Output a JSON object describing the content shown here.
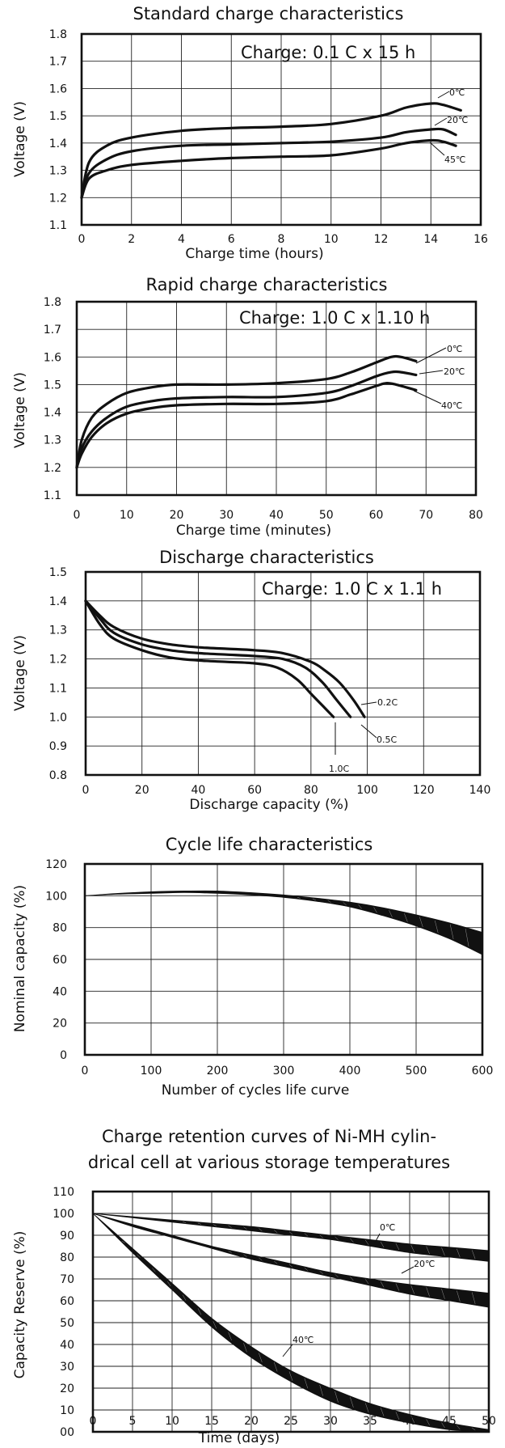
{
  "chart_data": [
    {
      "type": "line",
      "title": "Standard charge characteristics",
      "xlabel": "Charge time (hours)",
      "ylabel": "Voltage (V)",
      "annotation": "Charge: 0.1 C x 15 h",
      "xlim": [
        0,
        16
      ],
      "ylim": [
        1.1,
        1.8
      ],
      "x_ticks": [
        "0",
        "2",
        "4",
        "6",
        "8",
        "10",
        "12",
        "14",
        "16"
      ],
      "y_ticks": [
        "1.1",
        "1.2",
        "1.3",
        "1.4",
        "1.5",
        "1.6",
        "1.7",
        "1.8"
      ],
      "grid": true,
      "series": [
        {
          "name": "0℃",
          "points": [
            [
              0,
              1.2
            ],
            [
              0.3,
              1.33
            ],
            [
              1,
              1.39
            ],
            [
              2,
              1.42
            ],
            [
              4,
              1.445
            ],
            [
              6,
              1.455
            ],
            [
              8,
              1.46
            ],
            [
              10,
              1.47
            ],
            [
              12,
              1.5
            ],
            [
              13,
              1.53
            ],
            [
              14,
              1.545
            ],
            [
              14.5,
              1.54
            ],
            [
              15.2,
              1.52
            ]
          ]
        },
        {
          "name": "20℃",
          "points": [
            [
              0,
              1.2
            ],
            [
              0.3,
              1.29
            ],
            [
              1,
              1.34
            ],
            [
              2,
              1.37
            ],
            [
              4,
              1.39
            ],
            [
              6,
              1.395
            ],
            [
              8,
              1.4
            ],
            [
              10,
              1.405
            ],
            [
              12,
              1.42
            ],
            [
              13,
              1.44
            ],
            [
              14,
              1.45
            ],
            [
              14.5,
              1.45
            ],
            [
              15,
              1.43
            ]
          ]
        },
        {
          "name": "45℃",
          "points": [
            [
              0,
              1.2
            ],
            [
              0.3,
              1.27
            ],
            [
              1,
              1.3
            ],
            [
              2,
              1.32
            ],
            [
              4,
              1.335
            ],
            [
              6,
              1.345
            ],
            [
              8,
              1.35
            ],
            [
              10,
              1.355
            ],
            [
              12,
              1.38
            ],
            [
              13,
              1.4
            ],
            [
              14,
              1.41
            ],
            [
              14.5,
              1.405
            ],
            [
              15,
              1.39
            ]
          ]
        }
      ]
    },
    {
      "type": "line",
      "title": "Rapid charge characteristics",
      "xlabel": "Charge time (minutes)",
      "ylabel": "Voltage (V)",
      "annotation": "Charge: 1.0 C x 1.10 h",
      "xlim": [
        0,
        80
      ],
      "ylim": [
        1.1,
        1.8
      ],
      "x_ticks": [
        "0",
        "10",
        "20",
        "30",
        "40",
        "50",
        "60",
        "70",
        "80"
      ],
      "y_ticks": [
        "1.1",
        "1.2",
        "1.3",
        "1.4",
        "1.5",
        "1.6",
        "1.7",
        "1.8"
      ],
      "grid": true,
      "series": [
        {
          "name": "0℃",
          "points": [
            [
              0,
              1.2
            ],
            [
              1,
              1.3
            ],
            [
              3,
              1.38
            ],
            [
              6,
              1.43
            ],
            [
              10,
              1.47
            ],
            [
              15,
              1.49
            ],
            [
              20,
              1.5
            ],
            [
              30,
              1.5
            ],
            [
              40,
              1.505
            ],
            [
              50,
              1.52
            ],
            [
              55,
              1.545
            ],
            [
              60,
              1.58
            ],
            [
              63,
              1.6
            ],
            [
              65,
              1.6
            ],
            [
              68,
              1.585
            ]
          ]
        },
        {
          "name": "20℃",
          "points": [
            [
              0,
              1.2
            ],
            [
              1,
              1.27
            ],
            [
              3,
              1.33
            ],
            [
              6,
              1.38
            ],
            [
              10,
              1.42
            ],
            [
              15,
              1.44
            ],
            [
              20,
              1.45
            ],
            [
              30,
              1.455
            ],
            [
              40,
              1.455
            ],
            [
              50,
              1.47
            ],
            [
              55,
              1.495
            ],
            [
              60,
              1.53
            ],
            [
              63,
              1.545
            ],
            [
              65,
              1.545
            ],
            [
              68,
              1.535
            ]
          ]
        },
        {
          "name": "40℃",
          "points": [
            [
              0,
              1.2
            ],
            [
              1,
              1.25
            ],
            [
              3,
              1.31
            ],
            [
              6,
              1.36
            ],
            [
              10,
              1.395
            ],
            [
              15,
              1.415
            ],
            [
              20,
              1.425
            ],
            [
              30,
              1.43
            ],
            [
              40,
              1.43
            ],
            [
              50,
              1.44
            ],
            [
              55,
              1.465
            ],
            [
              60,
              1.495
            ],
            [
              62,
              1.505
            ],
            [
              64,
              1.5
            ],
            [
              68,
              1.48
            ]
          ]
        }
      ]
    },
    {
      "type": "line",
      "title": "Discharge characteristics",
      "xlabel": "Discharge capacity (%)",
      "ylabel": "Voltage (V)",
      "annotation": "Charge: 1.0 C x 1.1 h",
      "xlim": [
        0,
        140
      ],
      "ylim": [
        0.8,
        1.5
      ],
      "x_ticks": [
        "0",
        "20",
        "40",
        "60",
        "80",
        "100",
        "120",
        "140"
      ],
      "y_ticks": [
        "0.8",
        "0.9",
        "1.0",
        "1.1",
        "1.2",
        "1.3",
        "1.4",
        "1.5"
      ],
      "grid": true,
      "series": [
        {
          "name": "0.2C",
          "points": [
            [
              0,
              1.4
            ],
            [
              5,
              1.35
            ],
            [
              10,
              1.31
            ],
            [
              20,
              1.27
            ],
            [
              30,
              1.25
            ],
            [
              40,
              1.24
            ],
            [
              50,
              1.235
            ],
            [
              60,
              1.23
            ],
            [
              70,
              1.22
            ],
            [
              80,
              1.19
            ],
            [
              85,
              1.16
            ],
            [
              90,
              1.12
            ],
            [
              95,
              1.06
            ],
            [
              99,
              1.0
            ]
          ]
        },
        {
          "name": "0.5C",
          "points": [
            [
              0,
              1.4
            ],
            [
              5,
              1.34
            ],
            [
              10,
              1.29
            ],
            [
              20,
              1.25
            ],
            [
              30,
              1.23
            ],
            [
              40,
              1.22
            ],
            [
              50,
              1.215
            ],
            [
              60,
              1.21
            ],
            [
              70,
              1.2
            ],
            [
              78,
              1.17
            ],
            [
              84,
              1.12
            ],
            [
              89,
              1.06
            ],
            [
              94,
              1.0
            ]
          ]
        },
        {
          "name": "1.0C",
          "points": [
            [
              0,
              1.4
            ],
            [
              5,
              1.32
            ],
            [
              10,
              1.27
            ],
            [
              20,
              1.23
            ],
            [
              30,
              1.205
            ],
            [
              40,
              1.195
            ],
            [
              50,
              1.19
            ],
            [
              60,
              1.185
            ],
            [
              68,
              1.17
            ],
            [
              75,
              1.13
            ],
            [
              80,
              1.08
            ],
            [
              84,
              1.04
            ],
            [
              88,
              1.0
            ]
          ]
        }
      ]
    },
    {
      "type": "area",
      "title": "Cycle life characteristics",
      "xlabel": "Number of cycles life curve",
      "ylabel": "Nominal capacity (%)",
      "xlim": [
        0,
        600
      ],
      "ylim": [
        0,
        120
      ],
      "x_ticks": [
        "0",
        "100",
        "200",
        "300",
        "400",
        "500",
        "600"
      ],
      "y_ticks": [
        "0",
        "20",
        "40",
        "60",
        "80",
        "100",
        "120"
      ],
      "grid": true,
      "band": {
        "upper": [
          [
            0,
            100
          ],
          [
            50,
            101.5
          ],
          [
            100,
            102.5
          ],
          [
            150,
            103
          ],
          [
            200,
            103
          ],
          [
            250,
            102
          ],
          [
            300,
            100.5
          ],
          [
            350,
            98.5
          ],
          [
            400,
            96
          ],
          [
            450,
            92.5
          ],
          [
            500,
            88
          ],
          [
            550,
            83
          ],
          [
            600,
            77
          ]
        ],
        "lower": [
          [
            0,
            100
          ],
          [
            50,
            101
          ],
          [
            100,
            101.5
          ],
          [
            150,
            102
          ],
          [
            200,
            101.5
          ],
          [
            250,
            100.5
          ],
          [
            300,
            99
          ],
          [
            350,
            96.5
          ],
          [
            400,
            93
          ],
          [
            450,
            87.5
          ],
          [
            500,
            81
          ],
          [
            550,
            73
          ],
          [
            600,
            63
          ]
        ]
      }
    },
    {
      "type": "area",
      "title": "Charge retention curves of Ni-MH cylin-drical cell at various storage temperatures",
      "title_lines": [
        "Charge retention curves of Ni-MH cylin-",
        "drical cell at various storage temperatures"
      ],
      "xlabel": "Time (days)",
      "ylabel": "Capacity Reserve (%)",
      "xlim": [
        0,
        50
      ],
      "ylim": [
        0,
        110
      ],
      "x_ticks": [
        "0",
        "5",
        "10",
        "15",
        "20",
        "25",
        "30",
        "35",
        "40",
        "45",
        "50"
      ],
      "y_ticks": [
        "00",
        "10",
        "20",
        "30",
        "40",
        "50",
        "60",
        "70",
        "80",
        "90",
        "100",
        "110"
      ],
      "grid": true,
      "bands": [
        {
          "name": "0℃",
          "upper": [
            [
              0,
              100
            ],
            [
              5,
              98.5
            ],
            [
              10,
              97
            ],
            [
              15,
              95.5
            ],
            [
              20,
              94
            ],
            [
              25,
              92
            ],
            [
              30,
              90
            ],
            [
              35,
              88
            ],
            [
              40,
              86
            ],
            [
              45,
              84.5
            ],
            [
              50,
              83
            ]
          ],
          "lower": [
            [
              0,
              100
            ],
            [
              5,
              98
            ],
            [
              10,
              96
            ],
            [
              15,
              94
            ],
            [
              20,
              92
            ],
            [
              25,
              90
            ],
            [
              30,
              88
            ],
            [
              35,
              85
            ],
            [
              40,
              82
            ],
            [
              45,
              80
            ],
            [
              50,
              78
            ]
          ]
        },
        {
          "name": "20℃",
          "upper": [
            [
              0,
              100
            ],
            [
              5,
              95
            ],
            [
              10,
              90
            ],
            [
              15,
              85
            ],
            [
              20,
              81
            ],
            [
              25,
              77
            ],
            [
              30,
              73
            ],
            [
              35,
              70
            ],
            [
              40,
              67.5
            ],
            [
              45,
              65.5
            ],
            [
              50,
              63.5
            ]
          ],
          "lower": [
            [
              0,
              100
            ],
            [
              5,
              94
            ],
            [
              10,
              89
            ],
            [
              15,
              84
            ],
            [
              20,
              79
            ],
            [
              25,
              75
            ],
            [
              30,
              71
            ],
            [
              35,
              67
            ],
            [
              40,
              63
            ],
            [
              45,
              60
            ],
            [
              50,
              57
            ]
          ]
        },
        {
          "name": "40℃",
          "upper": [
            [
              0,
              100
            ],
            [
              5,
              84
            ],
            [
              10,
              68
            ],
            [
              15,
              52
            ],
            [
              20,
              39
            ],
            [
              25,
              28
            ],
            [
              30,
              20
            ],
            [
              35,
              13
            ],
            [
              40,
              8
            ],
            [
              45,
              4
            ],
            [
              50,
              1
            ]
          ],
          "lower": [
            [
              0,
              100
            ],
            [
              5,
              82
            ],
            [
              10,
              65
            ],
            [
              15,
              48
            ],
            [
              20,
              34
            ],
            [
              25,
              23
            ],
            [
              30,
              14
            ],
            [
              35,
              8
            ],
            [
              40,
              4
            ],
            [
              45,
              1
            ],
            [
              50,
              0
            ]
          ]
        }
      ]
    }
  ]
}
